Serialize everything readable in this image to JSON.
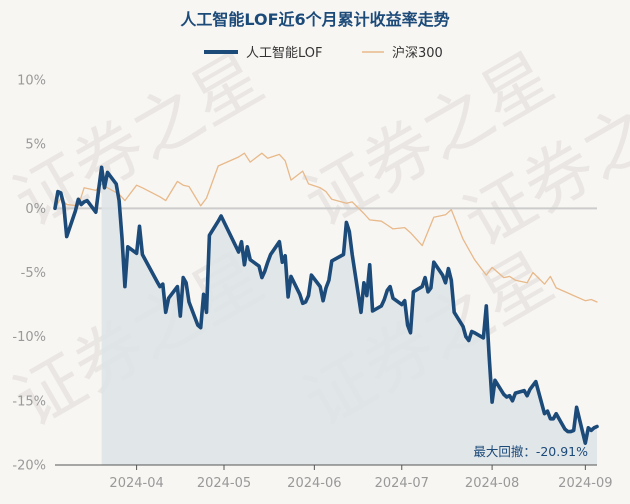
{
  "chart_data": {
    "type": "line",
    "title": "人工智能LOF近6个月累计收益率走势",
    "watermark": "证券之星",
    "annotation": "最大回撤：-20.91%",
    "y_unit": "%",
    "ylim": [
      -20,
      10
    ],
    "y_ticks": [
      10,
      5,
      0,
      -5,
      -10,
      -15,
      -20
    ],
    "y_tick_labels": [
      "10%",
      "5%",
      "0%",
      "-5%",
      "-10%",
      "-15%",
      "-20%"
    ],
    "x_range": [
      "2024-03-04",
      "2024-09-06"
    ],
    "x_tick_dates": [
      "2024-04-01",
      "2024-05-01",
      "2024-06-01",
      "2024-07-01",
      "2024-08-01",
      "2024-09-02"
    ],
    "x_tick_labels": [
      "2024-04",
      "2024-05",
      "2024-06",
      "2024-07",
      "2024-08",
      "2024-09"
    ],
    "drawdown_start_date": "2024-03-20",
    "legend_position": "top-center",
    "colors": {
      "fund": "#1c4a79",
      "index": "#e8b98a",
      "shade": "#dde3e6",
      "title": "#1c4a79",
      "axis": "#999999",
      "zero_line": "#cccccc",
      "watermark": "#e5e2de"
    },
    "series": [
      {
        "name": "人工智能LOF",
        "x": [
          "2024-03-04",
          "2024-03-05",
          "2024-03-06",
          "2024-03-07",
          "2024-03-08",
          "2024-03-11",
          "2024-03-12",
          "2024-03-13",
          "2024-03-14",
          "2024-03-15",
          "2024-03-18",
          "2024-03-19",
          "2024-03-20",
          "2024-03-21",
          "2024-03-22",
          "2024-03-25",
          "2024-03-26",
          "2024-03-27",
          "2024-03-28",
          "2024-03-29",
          "2024-04-01",
          "2024-04-02",
          "2024-04-03",
          "2024-04-08",
          "2024-04-09",
          "2024-04-10",
          "2024-04-11",
          "2024-04-12",
          "2024-04-15",
          "2024-04-16",
          "2024-04-17",
          "2024-04-18",
          "2024-04-19",
          "2024-04-22",
          "2024-04-23",
          "2024-04-24",
          "2024-04-25",
          "2024-04-26",
          "2024-04-29",
          "2024-04-30",
          "2024-05-06",
          "2024-05-07",
          "2024-05-08",
          "2024-05-09",
          "2024-05-10",
          "2024-05-13",
          "2024-05-14",
          "2024-05-15",
          "2024-05-16",
          "2024-05-17",
          "2024-05-20",
          "2024-05-21",
          "2024-05-22",
          "2024-05-23",
          "2024-05-24",
          "2024-05-27",
          "2024-05-28",
          "2024-05-29",
          "2024-05-30",
          "2024-05-31",
          "2024-06-03",
          "2024-06-04",
          "2024-06-05",
          "2024-06-06",
          "2024-06-07",
          "2024-06-11",
          "2024-06-12",
          "2024-06-13",
          "2024-06-14",
          "2024-06-17",
          "2024-06-18",
          "2024-06-19",
          "2024-06-20",
          "2024-06-21",
          "2024-06-24",
          "2024-06-25",
          "2024-06-26",
          "2024-06-27",
          "2024-06-28",
          "2024-07-01",
          "2024-07-02",
          "2024-07-03",
          "2024-07-04",
          "2024-07-05",
          "2024-07-08",
          "2024-07-09",
          "2024-07-10",
          "2024-07-11",
          "2024-07-12",
          "2024-07-15",
          "2024-07-16",
          "2024-07-17",
          "2024-07-18",
          "2024-07-19",
          "2024-07-22",
          "2024-07-23",
          "2024-07-24",
          "2024-07-25",
          "2024-07-26",
          "2024-07-29",
          "2024-07-30",
          "2024-07-31",
          "2024-08-01",
          "2024-08-02",
          "2024-08-05",
          "2024-08-06",
          "2024-08-07",
          "2024-08-08",
          "2024-08-09",
          "2024-08-12",
          "2024-08-13",
          "2024-08-14",
          "2024-08-15",
          "2024-08-16",
          "2024-08-19",
          "2024-08-20",
          "2024-08-21",
          "2024-08-22",
          "2024-08-23",
          "2024-08-26",
          "2024-08-27",
          "2024-08-28",
          "2024-08-29",
          "2024-08-30",
          "2024-09-02",
          "2024-09-03",
          "2024-09-04",
          "2024-09-05",
          "2024-09-06"
        ],
        "values": [
          0.0,
          1.3,
          1.2,
          0.3,
          -2.2,
          -0.2,
          0.7,
          0.3,
          0.5,
          0.6,
          -0.3,
          1.5,
          3.2,
          1.6,
          2.8,
          1.9,
          0.6,
          -2.3,
          -6.1,
          -3.0,
          -3.5,
          -1.4,
          -3.6,
          -5.7,
          -6.1,
          -5.9,
          -8.1,
          -7.0,
          -6.1,
          -8.4,
          -5.4,
          -5.8,
          -7.3,
          -9.1,
          -9.3,
          -6.7,
          -8.1,
          -2.1,
          -1.0,
          -0.6,
          -3.4,
          -2.6,
          -4.4,
          -3.0,
          -4.0,
          -4.5,
          -5.4,
          -4.9,
          -4.2,
          -3.6,
          -2.6,
          -4.2,
          -3.7,
          -6.9,
          -5.3,
          -6.7,
          -7.4,
          -7.3,
          -6.8,
          -5.2,
          -6.1,
          -7.2,
          -6.2,
          -5.6,
          -4.1,
          -3.6,
          -1.1,
          -1.8,
          -3.6,
          -8.1,
          -5.8,
          -6.8,
          -4.4,
          -8.0,
          -7.6,
          -7.1,
          -6.4,
          -6.1,
          -7.0,
          -7.5,
          -7.2,
          -9.1,
          -9.7,
          -6.5,
          -6.1,
          -5.4,
          -6.5,
          -6.2,
          -4.2,
          -5.2,
          -5.8,
          -4.7,
          -5.6,
          -8.1,
          -9.2,
          -10.0,
          -10.3,
          -9.6,
          -9.7,
          -10.1,
          -7.6,
          -11.6,
          -15.1,
          -13.4,
          -14.5,
          -14.7,
          -14.6,
          -15.0,
          -14.4,
          -14.2,
          -14.6,
          -14.1,
          -13.8,
          -13.5,
          -16.0,
          -15.8,
          -16.4,
          -16.4,
          -16.0,
          -17.2,
          -17.4,
          -17.4,
          -17.3,
          -15.5,
          -18.3,
          -17.1,
          -17.3,
          -17.1,
          -17.0
        ]
      },
      {
        "name": "沪深300",
        "x": [
          "2024-03-04",
          "2024-03-06",
          "2024-03-08",
          "2024-03-12",
          "2024-03-14",
          "2024-03-18",
          "2024-03-20",
          "2024-03-22",
          "2024-03-26",
          "2024-03-28",
          "2024-04-01",
          "2024-04-03",
          "2024-04-09",
          "2024-04-11",
          "2024-04-15",
          "2024-04-17",
          "2024-04-19",
          "2024-04-23",
          "2024-04-25",
          "2024-04-29",
          "2024-05-06",
          "2024-05-08",
          "2024-05-10",
          "2024-05-14",
          "2024-05-16",
          "2024-05-20",
          "2024-05-22",
          "2024-05-24",
          "2024-05-28",
          "2024-05-30",
          "2024-06-03",
          "2024-06-05",
          "2024-06-07",
          "2024-06-12",
          "2024-06-14",
          "2024-06-18",
          "2024-06-20",
          "2024-06-24",
          "2024-06-26",
          "2024-06-28",
          "2024-07-02",
          "2024-07-04",
          "2024-07-08",
          "2024-07-10",
          "2024-07-12",
          "2024-07-16",
          "2024-07-18",
          "2024-07-22",
          "2024-07-24",
          "2024-07-26",
          "2024-07-30",
          "2024-08-01",
          "2024-08-05",
          "2024-08-07",
          "2024-08-09",
          "2024-08-13",
          "2024-08-15",
          "2024-08-19",
          "2024-08-21",
          "2024-08-23",
          "2024-08-27",
          "2024-08-29",
          "2024-09-02",
          "2024-09-04",
          "2024-09-06"
        ],
        "values": [
          0.0,
          0.8,
          0.3,
          0.2,
          1.6,
          1.4,
          1.9,
          1.6,
          1.1,
          0.6,
          1.8,
          1.6,
          0.9,
          0.6,
          2.1,
          1.8,
          1.7,
          0.2,
          0.8,
          3.3,
          4.0,
          4.3,
          3.6,
          4.3,
          3.9,
          4.2,
          3.7,
          2.2,
          2.9,
          1.9,
          1.6,
          1.3,
          0.7,
          0.4,
          0.5,
          -0.4,
          -0.9,
          -1.0,
          -1.3,
          -1.6,
          -1.5,
          -1.9,
          -2.9,
          -1.8,
          -0.7,
          -0.5,
          -0.1,
          -2.4,
          -3.2,
          -4.0,
          -5.2,
          -4.6,
          -5.4,
          -5.3,
          -5.6,
          -5.8,
          -5.0,
          -5.9,
          -5.3,
          -6.2,
          -6.6,
          -6.8,
          -7.2,
          -7.1,
          -7.3
        ]
      }
    ]
  }
}
